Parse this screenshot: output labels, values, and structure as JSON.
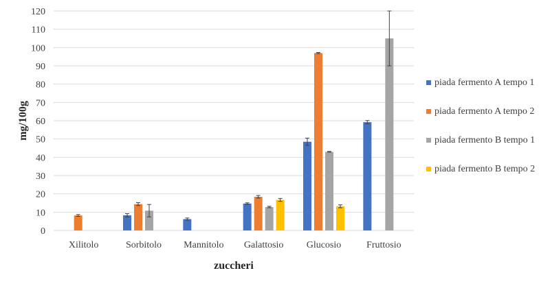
{
  "chart_data": {
    "type": "bar",
    "xlabel": "zuccheri",
    "ylabel": "mg/100g",
    "ylim": [
      0,
      120
    ],
    "yticks": [
      0,
      10,
      20,
      30,
      40,
      50,
      60,
      70,
      80,
      90,
      100,
      110,
      120
    ],
    "grid": true,
    "legend_position": "right",
    "categories": [
      "Xilitolo",
      "Sorbitolo",
      "Mannitolo",
      "Galattosio",
      "Glucosio",
      "Fruttosio"
    ],
    "series": [
      {
        "name": "piada fermento A tempo 1",
        "color": "#4472C4",
        "values": [
          null,
          8.3,
          6.2,
          14.7,
          48.5,
          59.2
        ],
        "errors": [
          null,
          0.9,
          0.6,
          0.4,
          2.0,
          0.9
        ]
      },
      {
        "name": "piada fermento A tempo 2",
        "color": "#ED7D31",
        "values": [
          8.2,
          14.4,
          null,
          18.4,
          97.0,
          null
        ],
        "errors": [
          0.5,
          0.8,
          null,
          0.7,
          0.3,
          null
        ]
      },
      {
        "name": "piada fermento B tempo 1",
        "color": "#A5A5A5",
        "values": [
          null,
          10.8,
          null,
          12.8,
          43.0,
          105.0
        ],
        "errors": [
          null,
          3.4,
          null,
          0.4,
          0.2,
          15.0
        ]
      },
      {
        "name": "piada fermento B tempo 2",
        "color": "#FFC000",
        "values": [
          null,
          null,
          null,
          16.7,
          13.2,
          null
        ],
        "errors": [
          null,
          null,
          null,
          0.8,
          0.8,
          null
        ]
      }
    ]
  }
}
